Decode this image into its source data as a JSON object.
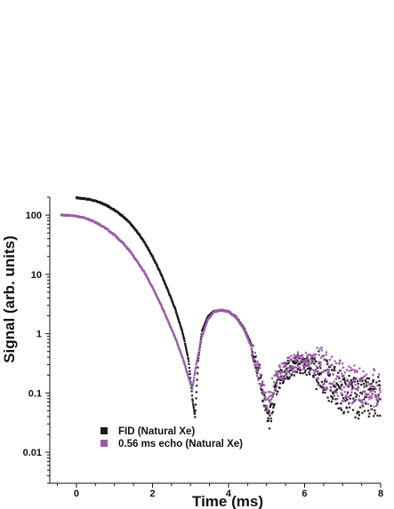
{
  "chart_data": {
    "type": "scatter",
    "xlabel": "Time (ms)",
    "ylabel": "Signal (arb. units)",
    "xlim": [
      -0.7,
      8
    ],
    "ylim": [
      0.003,
      200
    ],
    "yscale": "log",
    "xticks": [
      0,
      2,
      4,
      6,
      8
    ],
    "yticks": [
      0.01,
      0.1,
      1,
      10,
      100
    ],
    "xtick_labels": [
      "0",
      "2",
      "4",
      "6",
      "8"
    ],
    "ytick_labels": [
      "0.01",
      "0.1",
      "1",
      "10",
      "100"
    ],
    "grid": false,
    "legend_position": "bottom-left",
    "series": [
      {
        "name": "FID (Natural Xe)",
        "color": "#1a1a1a",
        "x": [
          0,
          0.2,
          0.4,
          0.6,
          0.8,
          1.0,
          1.2,
          1.4,
          1.6,
          1.8,
          2.0,
          2.2,
          2.4,
          2.6,
          2.8,
          2.95,
          3.05,
          3.12,
          3.2,
          3.3,
          3.45,
          3.6,
          3.8,
          4.0,
          4.2,
          4.4,
          4.6,
          4.8,
          4.95,
          5.05,
          5.15,
          5.25,
          5.4,
          5.6,
          5.8,
          6.0,
          6.2,
          6.4,
          6.6,
          6.8,
          7.0,
          7.2,
          7.4,
          7.6,
          7.8,
          8.0
        ],
        "values": [
          195,
          190,
          180,
          165,
          145,
          122,
          98,
          74,
          52,
          34,
          20,
          11,
          5.5,
          2.6,
          1.0,
          0.35,
          0.08,
          0.04,
          0.35,
          1.1,
          1.9,
          2.35,
          2.5,
          2.35,
          1.9,
          1.25,
          0.65,
          0.25,
          0.07,
          0.03,
          0.06,
          0.13,
          0.2,
          0.26,
          0.3,
          0.3,
          0.27,
          0.22,
          0.17,
          0.13,
          0.1,
          0.09,
          0.08,
          0.08,
          0.085,
          0.09
        ]
      },
      {
        "name": "0.56 ms echo (Natural Xe)",
        "color": "#9b5aa8",
        "x": [
          -0.4,
          -0.2,
          0,
          0.2,
          0.4,
          0.6,
          0.8,
          1.0,
          1.2,
          1.4,
          1.6,
          1.8,
          2.0,
          2.2,
          2.4,
          2.6,
          2.8,
          2.95,
          3.05,
          3.15,
          3.3,
          3.45,
          3.6,
          3.8,
          4.0,
          4.2,
          4.4,
          4.6,
          4.8,
          4.95,
          5.05,
          5.15,
          5.3,
          5.5,
          5.7,
          5.9,
          6.1,
          6.3,
          6.5,
          6.7,
          6.9,
          7.1,
          7.3,
          7.5,
          7.7,
          7.9,
          8.0
        ],
        "values": [
          100,
          99,
          96,
          90,
          81,
          70,
          58,
          46,
          35,
          25,
          16.5,
          10.5,
          6.0,
          3.3,
          1.7,
          0.85,
          0.38,
          0.18,
          0.12,
          0.3,
          0.9,
          1.7,
          2.3,
          2.5,
          2.35,
          1.85,
          1.2,
          0.6,
          0.22,
          0.08,
          0.07,
          0.12,
          0.19,
          0.26,
          0.32,
          0.35,
          0.34,
          0.3,
          0.25,
          0.2,
          0.17,
          0.15,
          0.14,
          0.13,
          0.12,
          0.11,
          0.11
        ]
      }
    ]
  }
}
